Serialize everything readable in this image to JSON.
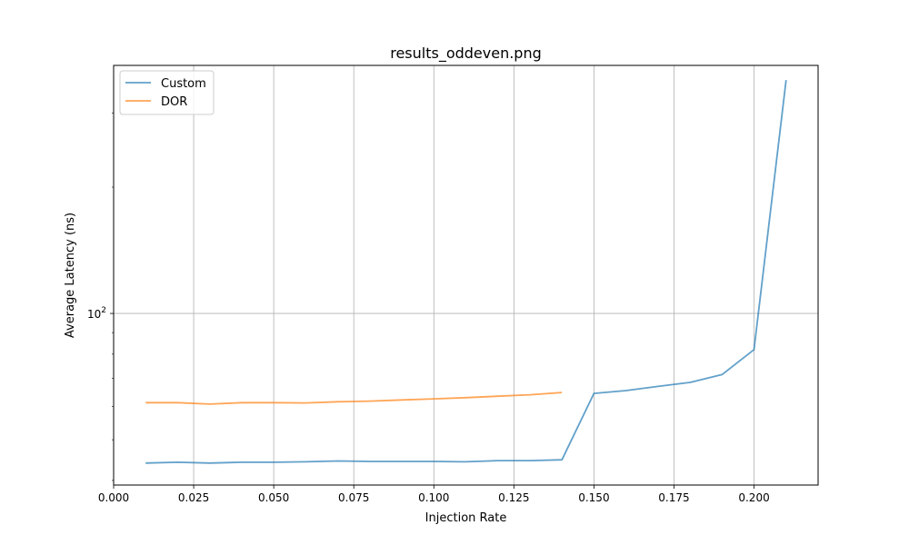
{
  "chart_data": {
    "type": "line",
    "title": "results_oddeven.png",
    "xlabel": "Injection Rate",
    "ylabel": "Average Latency (ns)",
    "xlim": [
      0.0,
      0.22
    ],
    "ylim": [
      39,
      390
    ],
    "yscale": "log",
    "grid": true,
    "legend_position": "top-left",
    "x_ticks": [
      "0.000",
      "0.025",
      "0.050",
      "0.075",
      "0.100",
      "0.125",
      "0.150",
      "0.175",
      "0.200"
    ],
    "x_tick_values": [
      0.0,
      0.025,
      0.05,
      0.075,
      0.1,
      0.125,
      0.15,
      0.175,
      0.2
    ],
    "y_major_tick": {
      "value": 100,
      "label_base": "10",
      "label_exp": "2"
    },
    "y_minor_ticks": [
      40,
      50,
      60,
      70,
      80,
      90,
      200,
      300
    ],
    "series": [
      {
        "name": "Custom",
        "color": "#1f77b4",
        "x": [
          0.01,
          0.02,
          0.03,
          0.04,
          0.05,
          0.06,
          0.07,
          0.08,
          0.09,
          0.1,
          0.11,
          0.12,
          0.13,
          0.14,
          0.15,
          0.16,
          0.17,
          0.18,
          0.19,
          0.2,
          0.21
        ],
        "y": [
          44.0,
          44.2,
          44.0,
          44.2,
          44.2,
          44.3,
          44.5,
          44.4,
          44.4,
          44.4,
          44.3,
          44.6,
          44.6,
          44.8,
          64.5,
          65.5,
          67.0,
          68.5,
          71.5,
          82.0,
          360.0
        ]
      },
      {
        "name": "DOR",
        "color": "#ff7f0e",
        "x": [
          0.01,
          0.02,
          0.03,
          0.04,
          0.05,
          0.06,
          0.07,
          0.08,
          0.09,
          0.1,
          0.11,
          0.12,
          0.13,
          0.14
        ],
        "y": [
          61.3,
          61.3,
          60.8,
          61.3,
          61.3,
          61.2,
          61.6,
          61.8,
          62.2,
          62.6,
          63.0,
          63.5,
          64.0,
          64.8
        ]
      }
    ]
  }
}
